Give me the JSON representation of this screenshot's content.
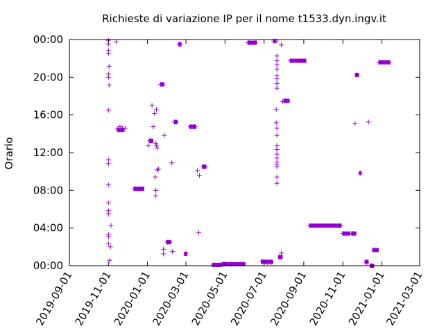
{
  "chart_data": {
    "type": "scatter",
    "title": "Richieste di variazione IP per il nome t1533.dyn.ingv.it",
    "ylabel": "Orario",
    "xlabel": "",
    "x_axis": {
      "kind": "date",
      "range": [
        "2019-09-01",
        "2021-03-01"
      ],
      "tick_labels": [
        "2019-09-01",
        "2019-11-01",
        "2020-01-01",
        "2020-03-01",
        "2020-05-01",
        "2020-07-01",
        "2020-09-01",
        "2020-11-01",
        "2021-01-01",
        "2021-03-01"
      ]
    },
    "y_axis": {
      "kind": "time_of_day",
      "range": [
        "00:00",
        "24:00"
      ],
      "tick_labels": [
        "00:00",
        "04:00",
        "08:00",
        "12:00",
        "16:00",
        "20:00",
        "00:00"
      ]
    },
    "grid": false,
    "legend": "none",
    "marker_color": "#9400d3",
    "series": [
      {
        "points": [
          [
            "2019-11-01",
            "23:55"
          ],
          [
            "2019-11-01",
            "23:30"
          ],
          [
            "2019-11-01",
            "22:50"
          ],
          [
            "2019-11-01",
            "22:30"
          ],
          [
            "2019-11-02",
            "21:10"
          ],
          [
            "2019-11-01",
            "20:20"
          ],
          [
            "2019-11-01",
            "20:00"
          ],
          [
            "2019-11-02",
            "19:10"
          ],
          [
            "2019-11-01",
            "16:30"
          ],
          [
            "2019-11-01",
            "11:15"
          ],
          [
            "2019-11-01",
            "10:50"
          ],
          [
            "2019-11-01",
            "08:35"
          ],
          [
            "2019-11-01",
            "06:40"
          ],
          [
            "2019-11-01",
            "05:50"
          ],
          [
            "2019-11-01",
            "05:30"
          ],
          [
            "2019-11-05",
            "04:15"
          ],
          [
            "2019-11-01",
            "03:20"
          ],
          [
            "2019-11-01",
            "03:05"
          ],
          [
            "2019-11-01",
            "02:20"
          ],
          [
            "2019-11-04",
            "02:00"
          ],
          [
            "2019-11-03",
            "00:35"
          ],
          [
            "2019-11-13",
            "23:45"
          ],
          [
            "2019-11-15",
            "14:30"
          ],
          [
            "2019-11-19",
            "14:45"
          ],
          [
            "2019-11-23",
            "14:35"
          ],
          [
            "2019-11-27",
            "14:35"
          ],
          [
            "2019-12-12",
            "08:10"
          ],
          [
            "2019-12-18",
            "08:10"
          ],
          [
            "2019-12-22",
            "08:10"
          ],
          [
            "2020-01-02",
            "12:45"
          ],
          [
            "2020-01-04",
            "13:15"
          ],
          [
            "2020-01-06",
            "13:20"
          ],
          [
            "2020-01-08",
            "17:00"
          ],
          [
            "2020-01-10",
            "14:45"
          ],
          [
            "2020-01-12",
            "16:10"
          ],
          [
            "2020-01-14",
            "13:00"
          ],
          [
            "2020-01-15",
            "12:45"
          ],
          [
            "2020-01-15",
            "16:35"
          ],
          [
            "2020-01-16",
            "12:30"
          ],
          [
            "2020-01-16",
            "10:10"
          ],
          [
            "2020-01-13",
            "09:25"
          ],
          [
            "2020-01-14",
            "08:00"
          ],
          [
            "2020-01-14",
            "07:25"
          ],
          [
            "2020-01-18",
            "10:15"
          ],
          [
            "2020-01-21",
            "19:15"
          ],
          [
            "2020-01-25",
            "19:15"
          ],
          [
            "2020-01-27",
            "13:50"
          ],
          [
            "2020-01-26",
            "01:45"
          ],
          [
            "2020-01-26",
            "01:15"
          ],
          [
            "2020-02-01",
            "02:30"
          ],
          [
            "2020-02-05",
            "02:30"
          ],
          [
            "2020-02-08",
            "10:55"
          ],
          [
            "2020-02-09",
            "01:30"
          ],
          [
            "2020-02-12",
            "15:15"
          ],
          [
            "2020-02-15",
            "15:15"
          ],
          [
            "2020-02-19",
            "23:30"
          ],
          [
            "2020-02-22",
            "23:30"
          ],
          [
            "2020-03-01",
            "01:20"
          ],
          [
            "2020-03-08",
            "14:45"
          ],
          [
            "2020-03-13",
            "14:45"
          ],
          [
            "2020-03-15",
            "14:45"
          ],
          [
            "2020-03-19",
            "10:05"
          ],
          [
            "2020-03-21",
            "03:30"
          ],
          [
            "2020-03-22",
            "09:35"
          ],
          [
            "2020-03-28",
            "10:30"
          ],
          [
            "2020-03-31",
            "10:30"
          ],
          [
            "2020-04-13",
            "00:05"
          ],
          [
            "2020-04-24",
            "00:05"
          ],
          [
            "2020-04-29",
            "00:10"
          ],
          [
            "2020-05-10",
            "00:10"
          ],
          [
            "2020-05-26",
            "00:10"
          ],
          [
            "2020-06-06",
            "23:40"
          ],
          [
            "2020-06-17",
            "23:40"
          ],
          [
            "2020-06-28",
            "00:30"
          ],
          [
            "2020-07-06",
            "00:20"
          ],
          [
            "2020-07-12",
            "00:20"
          ],
          [
            "2020-07-16",
            "23:50"
          ],
          [
            "2020-07-20",
            "23:50"
          ],
          [
            "2020-07-21",
            "22:15"
          ],
          [
            "2020-07-21",
            "21:45"
          ],
          [
            "2020-07-21",
            "21:20"
          ],
          [
            "2020-07-21",
            "20:50"
          ],
          [
            "2020-07-21",
            "20:10"
          ],
          [
            "2020-07-21",
            "19:50"
          ],
          [
            "2020-07-21",
            "19:20"
          ],
          [
            "2020-07-21",
            "18:50"
          ],
          [
            "2020-07-20",
            "16:35"
          ],
          [
            "2020-07-20",
            "15:10"
          ],
          [
            "2020-07-21",
            "14:35"
          ],
          [
            "2020-07-21",
            "13:50"
          ],
          [
            "2020-07-21",
            "12:45"
          ],
          [
            "2020-07-21",
            "12:20"
          ],
          [
            "2020-07-21",
            "11:50"
          ],
          [
            "2020-07-21",
            "11:25"
          ],
          [
            "2020-07-21",
            "11:00"
          ],
          [
            "2020-07-21",
            "10:45"
          ],
          [
            "2020-07-21",
            "10:30"
          ],
          [
            "2020-07-21",
            "09:25"
          ],
          [
            "2020-07-21",
            "08:45"
          ],
          [
            "2020-07-25",
            "00:55"
          ],
          [
            "2020-07-28",
            "01:20"
          ],
          [
            "2020-07-28",
            "23:25"
          ],
          [
            "2020-07-30",
            "17:25"
          ],
          [
            "2020-08-04",
            "17:30"
          ],
          [
            "2020-08-11",
            "21:45"
          ],
          [
            "2020-08-27",
            "21:45"
          ],
          [
            "2020-09-10",
            "04:15"
          ],
          [
            "2020-10-28",
            "04:15"
          ],
          [
            "2020-11-01",
            "03:25"
          ],
          [
            "2020-11-12",
            "03:25"
          ],
          [
            "2020-11-17",
            "03:25"
          ],
          [
            "2020-11-20",
            "15:05"
          ],
          [
            "2020-11-23",
            "20:15"
          ],
          [
            "2020-11-29",
            "09:50"
          ],
          [
            "2020-12-08",
            "00:20"
          ],
          [
            "2020-12-11",
            "15:15"
          ],
          [
            "2020-12-15",
            "00:00"
          ],
          [
            "2020-12-19",
            "01:40"
          ],
          [
            "2020-12-27",
            "21:35"
          ],
          [
            "2021-01-13",
            "21:35"
          ]
        ]
      }
    ],
    "segments": [
      {
        "from": "2019-11-14",
        "to": "2019-11-26",
        "time": "14:25"
      },
      {
        "from": "2019-12-10",
        "to": "2019-12-27",
        "time": "08:10"
      },
      {
        "from": "2020-01-04",
        "to": "2020-01-10",
        "time": "13:15"
      },
      {
        "from": "2020-01-21",
        "to": "2020-01-27",
        "time": "19:15"
      },
      {
        "from": "2020-01-30",
        "to": "2020-02-07",
        "time": "02:30"
      },
      {
        "from": "2020-02-11",
        "to": "2020-02-17",
        "time": "15:15"
      },
      {
        "from": "2020-02-18",
        "to": "2020-02-23",
        "time": "23:30"
      },
      {
        "from": "2020-02-27",
        "to": "2020-03-03",
        "time": "01:15"
      },
      {
        "from": "2020-03-06",
        "to": "2020-03-17",
        "time": "14:45"
      },
      {
        "from": "2020-03-26",
        "to": "2020-04-02",
        "time": "10:30"
      },
      {
        "from": "2020-04-11",
        "to": "2020-04-26",
        "time": "00:05"
      },
      {
        "from": "2020-04-26",
        "to": "2020-06-02",
        "time": "00:10"
      },
      {
        "from": "2020-06-05",
        "to": "2020-06-20",
        "time": "23:40"
      },
      {
        "from": "2020-06-26",
        "to": "2020-07-15",
        "time": "00:25"
      },
      {
        "from": "2020-07-15",
        "to": "2020-07-19",
        "time": "23:50"
      },
      {
        "from": "2020-07-23",
        "to": "2020-07-30",
        "time": "00:55"
      },
      {
        "from": "2020-07-31",
        "to": "2020-08-10",
        "time": "17:30"
      },
      {
        "from": "2020-08-10",
        "to": "2020-09-05",
        "time": "21:45"
      },
      {
        "from": "2020-09-09",
        "to": "2020-10-30",
        "time": "04:15"
      },
      {
        "from": "2020-10-31",
        "to": "2020-11-12",
        "time": "03:25"
      },
      {
        "from": "2020-11-14",
        "to": "2020-11-22",
        "time": "03:25"
      },
      {
        "from": "2020-11-20",
        "to": "2020-11-26",
        "time": "20:15"
      },
      {
        "from": "2020-11-26",
        "to": "2020-11-30",
        "time": "09:50"
      },
      {
        "from": "2020-12-05",
        "to": "2020-12-11",
        "time": "00:25"
      },
      {
        "from": "2020-12-13",
        "to": "2020-12-20",
        "time": "00:00"
      },
      {
        "from": "2020-12-17",
        "to": "2020-12-27",
        "time": "01:40"
      },
      {
        "from": "2020-12-27",
        "to": "2021-01-14",
        "time": "21:35"
      }
    ]
  }
}
